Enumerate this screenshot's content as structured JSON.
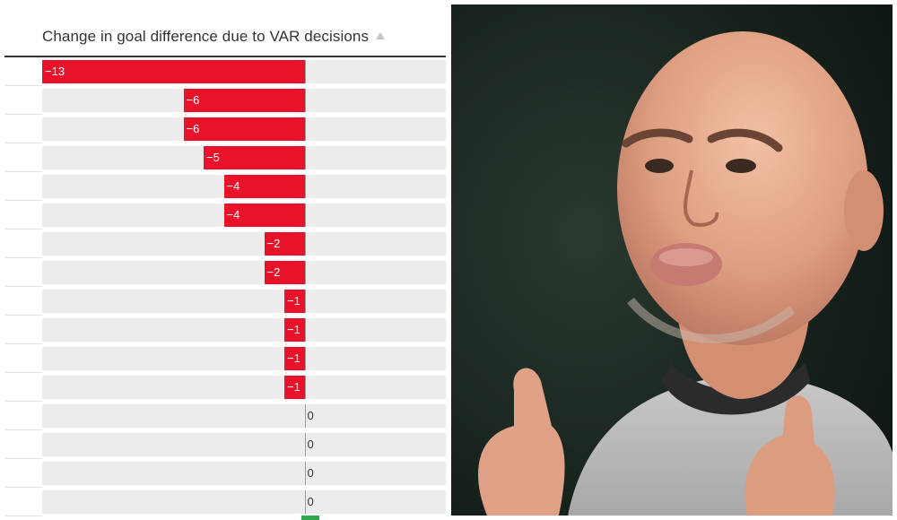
{
  "chart_data": {
    "type": "bar",
    "orientation": "horizontal",
    "title": "Change in goal difference due to VAR decisions",
    "sort_indicator": "ascending",
    "xlim": [
      -13,
      7
    ],
    "values": [
      -13,
      -6,
      -6,
      -5,
      -4,
      -4,
      -2,
      -2,
      -1,
      -1,
      -1,
      -1,
      0,
      0,
      0,
      0
    ],
    "labels": [
      "−13",
      "−6",
      "−6",
      "−5",
      "−4",
      "−4",
      "−2",
      "−2",
      "−1",
      "−1",
      "−1",
      "−1",
      "0",
      "0",
      "0",
      "0"
    ],
    "colors": {
      "negative": "#e8132b",
      "positive": "#2fa84f",
      "track": "#ececec",
      "axis": "#9a9a9a"
    }
  },
  "photo": {
    "subject": "bald-man-thumbs-up-icon",
    "colors": {
      "background": "#0e1512",
      "skin": "#e0a287",
      "shirt": "#bdbdbd"
    }
  }
}
